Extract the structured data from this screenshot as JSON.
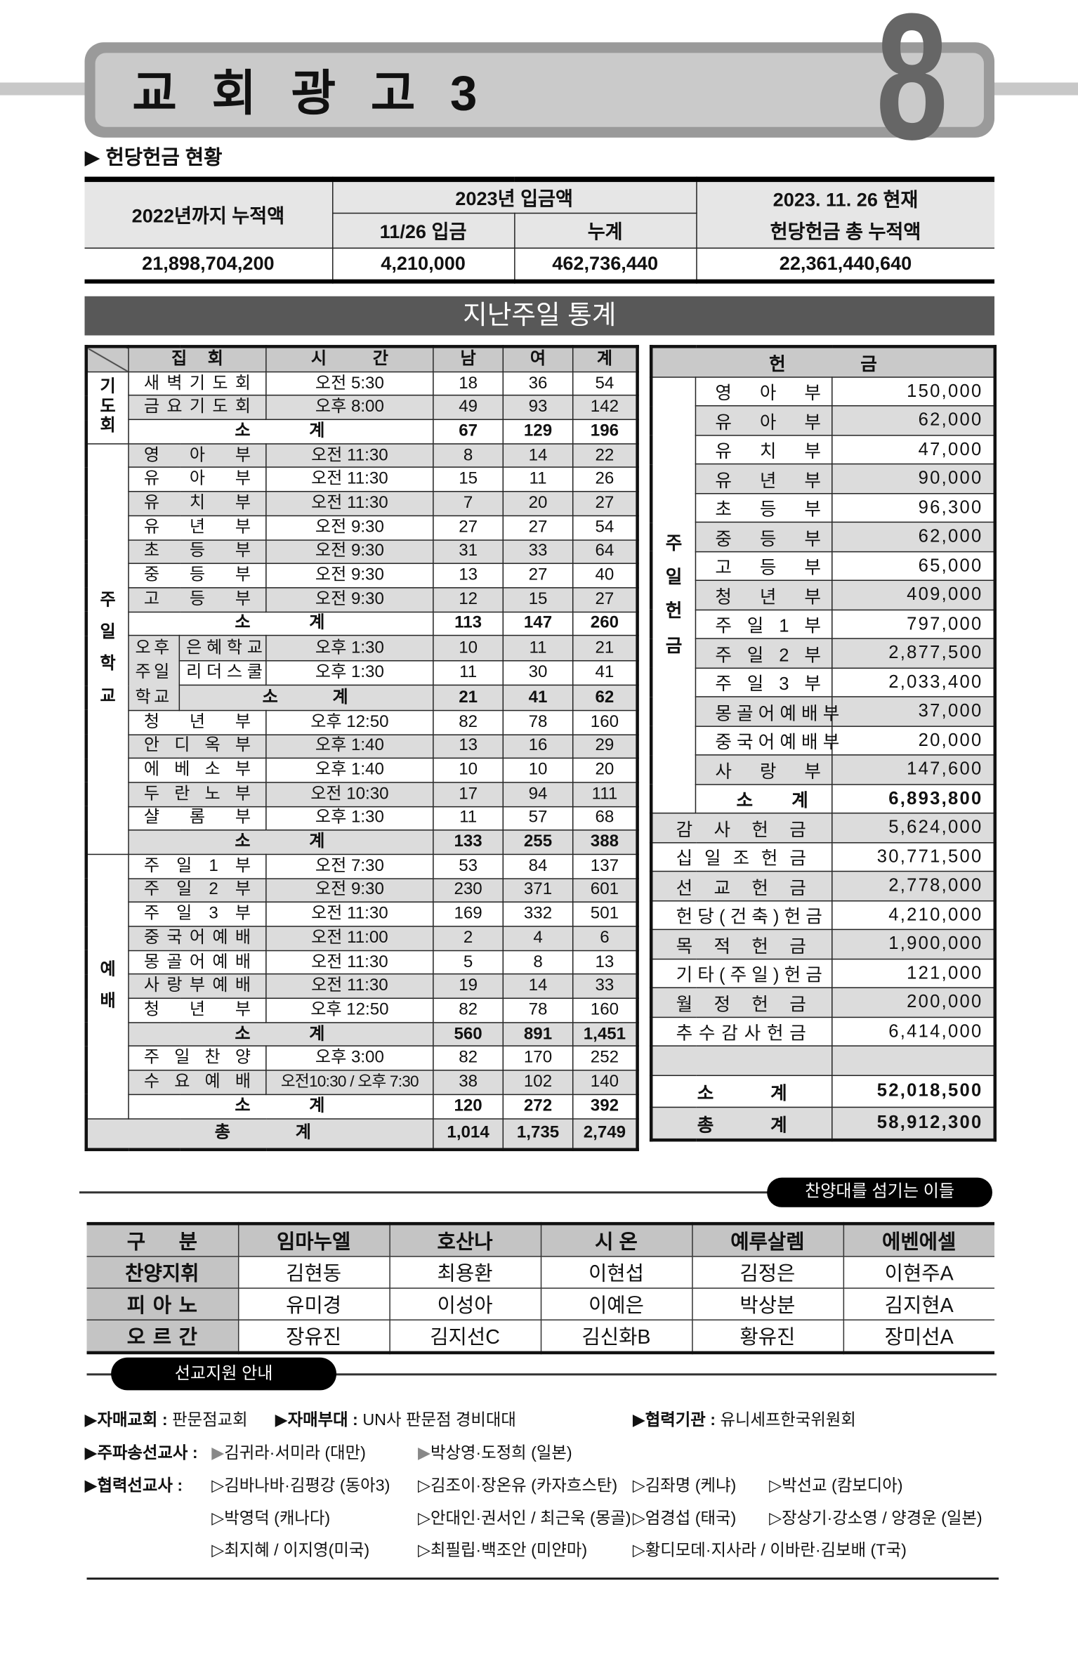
{
  "header": {
    "title": "교 회 광 고 3",
    "page_number": "8",
    "section_label": "▶ 헌당헌금 현황"
  },
  "building_fund": {
    "col_until_2022": "2022년까지 누적액",
    "col_2023": "2023년 입금액",
    "col_1126": "11/26 입금",
    "col_cumulative": "누계",
    "col_total_line1": "2023. 11. 26 현재",
    "col_total_line2": "헌당헌금 총 누적액",
    "values": [
      "21,898,704,200",
      "4,210,000",
      "462,736,440",
      "22,361,440,640"
    ]
  },
  "stats_title": "지난주일 통계",
  "attendance": {
    "headers": [
      "집 회",
      "시 간",
      "남",
      "여",
      "계"
    ],
    "groups": [
      {
        "label": "기도회",
        "items": [
          {
            "name": "새 벽 기 도 회",
            "time": "오전 5:30",
            "m": "18",
            "f": "36",
            "t": "54"
          },
          {
            "name": "금 요 기 도 회",
            "time": "오후 8:00",
            "m": "49",
            "f": "93",
            "t": "142"
          },
          {
            "subtotal": true,
            "label": "소 계",
            "m": "67",
            "f": "129",
            "t": "196"
          }
        ]
      },
      {
        "label": "주일학교",
        "items": [
          {
            "name": "영 아 부",
            "time": "오전 11:30",
            "m": "8",
            "f": "14",
            "t": "22"
          },
          {
            "name": "유 아 부",
            "time": "오전 11:30",
            "m": "15",
            "f": "11",
            "t": "26"
          },
          {
            "name": "유 치 부",
            "time": "오전 11:30",
            "m": "7",
            "f": "20",
            "t": "27"
          },
          {
            "name": "유 년 부",
            "time": "오전 9:30",
            "m": "27",
            "f": "27",
            "t": "54"
          },
          {
            "name": "초 등 부",
            "time": "오전 9:30",
            "m": "31",
            "f": "33",
            "t": "64"
          },
          {
            "name": "중 등 부",
            "time": "오전 9:30",
            "m": "13",
            "f": "27",
            "t": "40"
          },
          {
            "name": "고 등 부",
            "time": "오전 9:30",
            "m": "12",
            "f": "15",
            "t": "27"
          },
          {
            "subtotal": true,
            "label": "소 계",
            "m": "113",
            "f": "147",
            "t": "260"
          },
          {
            "subgroup": "오후주일학교",
            "rows": [
              {
                "name": "은 혜 학 교",
                "time": "오후 1:30",
                "m": "10",
                "f": "11",
                "t": "21"
              },
              {
                "name": "리 더 스 쿨",
                "time": "오후 1:30",
                "m": "11",
                "f": "30",
                "t": "41"
              }
            ],
            "subtotal": {
              "label": "소 계",
              "m": "21",
              "f": "41",
              "t": "62"
            }
          },
          {
            "name": "청 년 부",
            "time": "오후 12:50",
            "m": "82",
            "f": "78",
            "t": "160"
          },
          {
            "name": "안 디 옥 부",
            "time": "오후 1:40",
            "m": "13",
            "f": "16",
            "t": "29"
          },
          {
            "name": "에 베 소 부",
            "time": "오후 1:40",
            "m": "10",
            "f": "10",
            "t": "20"
          },
          {
            "name": "두 란 노 부",
            "time": "오전 10:30",
            "m": "17",
            "f": "94",
            "t": "111"
          },
          {
            "name": "샬 롬 부",
            "time": "오후 1:30",
            "m": "11",
            "f": "57",
            "t": "68"
          },
          {
            "subtotal": true,
            "label": "소 계",
            "m": "133",
            "f": "255",
            "t": "388"
          }
        ]
      },
      {
        "label": "예배",
        "items": [
          {
            "name": "주 일 1 부",
            "time": "오전 7:30",
            "m": "53",
            "f": "84",
            "t": "137"
          },
          {
            "name": "주 일 2 부",
            "time": "오전 9:30",
            "m": "230",
            "f": "371",
            "t": "601"
          },
          {
            "name": "주 일 3 부",
            "time": "오전 11:30",
            "m": "169",
            "f": "332",
            "t": "501"
          },
          {
            "name": "중 국 어 예 배",
            "time": "오전 11:00",
            "m": "2",
            "f": "4",
            "t": "6"
          },
          {
            "name": "몽 골 어 예 배",
            "time": "오전 11:30",
            "m": "5",
            "f": "8",
            "t": "13"
          },
          {
            "name": "사 랑 부 예 배",
            "time": "오전 11:30",
            "m": "19",
            "f": "14",
            "t": "33"
          },
          {
            "name": "청 년 부",
            "time": "오후 12:50",
            "m": "82",
            "f": "78",
            "t": "160"
          },
          {
            "subtotal": true,
            "label": "소 계",
            "m": "560",
            "f": "891",
            "t": "1,451"
          },
          {
            "name": "주 일 찬 양",
            "time": "오후 3:00",
            "m": "82",
            "f": "170",
            "t": "252"
          },
          {
            "name": "수 요 예 배",
            "time": "오전10:30 / 오후 7:30",
            "m": "38",
            "f": "102",
            "t": "140"
          },
          {
            "subtotal": true,
            "label": "소 계",
            "m": "120",
            "f": "272",
            "t": "392"
          }
        ]
      }
    ],
    "total": {
      "label": "총 계",
      "m": "1,014",
      "f": "1,735",
      "t": "2,749"
    }
  },
  "offering": {
    "header": "헌 금",
    "sunday_label": "주일헌금",
    "sunday_rows": [
      {
        "name": "영 아 부",
        "amount": "150,000"
      },
      {
        "name": "유 아 부",
        "amount": "62,000"
      },
      {
        "name": "유 치 부",
        "amount": "47,000"
      },
      {
        "name": "유 년 부",
        "amount": "90,000"
      },
      {
        "name": "초 등 부",
        "amount": "96,300"
      },
      {
        "name": "중 등 부",
        "amount": "62,000"
      },
      {
        "name": "고 등 부",
        "amount": "65,000"
      },
      {
        "name": "청 년 부",
        "amount": "409,000"
      },
      {
        "name": "주 일 1 부",
        "amount": "797,000"
      },
      {
        "name": "주 일 2 부",
        "amount": "2,877,500"
      },
      {
        "name": "주 일 3 부",
        "amount": "2,033,400"
      },
      {
        "name": "몽 골 어 예 배 부",
        "amount": "37,000"
      },
      {
        "name": "중 국 어 예 배 부",
        "amount": "20,000"
      },
      {
        "name": "사 랑 부",
        "amount": "147,600"
      }
    ],
    "sunday_subtotal": {
      "label": "소 계",
      "amount": "6,893,800"
    },
    "other_rows": [
      {
        "name": "감 사 헌 금",
        "amount": "5,624,000"
      },
      {
        "name": "십 일 조 헌 금",
        "amount": "30,771,500"
      },
      {
        "name": "선 교 헌 금",
        "amount": "2,778,000"
      },
      {
        "name": "헌 당 ( 건 축 ) 헌 금",
        "amount": "4,210,000"
      },
      {
        "name": "목 적 헌 금",
        "amount": "1,900,000"
      },
      {
        "name": "기 타 ( 주 일 ) 헌 금",
        "amount": "121,000"
      },
      {
        "name": "월 정 헌 금",
        "amount": "200,000"
      },
      {
        "name": "추 수 감 사 헌 금",
        "amount": "6,414,000"
      },
      {
        "name": "",
        "amount": ""
      }
    ],
    "subtotal": {
      "label": "소 계",
      "amount": "52,018,500"
    },
    "total": {
      "label": "총 계",
      "amount": "58,912,300"
    }
  },
  "choir": {
    "title": "찬양대를 섬기는 이들",
    "headers": [
      "구 분",
      "임마누엘",
      "호산나",
      "시 온",
      "예루살렘",
      "에벤에셀"
    ],
    "rows": [
      [
        "찬양지휘",
        "김현동",
        "최용환",
        "이현섭",
        "김정은",
        "이현주A"
      ],
      [
        "피 아 노",
        "유미경",
        "이성아",
        "이예은",
        "박상분",
        "김지현A"
      ],
      [
        "오 르 간",
        "장유진",
        "김지선C",
        "김신화B",
        "황유진",
        "장미선A"
      ]
    ]
  },
  "mission": {
    "title": "선교지원 안내",
    "sister_church": {
      "label": "자매교회 :",
      "value": "판문점교회"
    },
    "sister_unit": {
      "label": "자매부대 :",
      "value": "UN사 판문점 경비대대"
    },
    "partner_org": {
      "label": "협력기관 :",
      "value": "유니세프한국위원회"
    },
    "sent_label": "주파송선교사 :",
    "sent": [
      "김귀라·서미라 (대만)",
      "박상영·도정희 (일본)"
    ],
    "partner_label": "협력선교사 :",
    "partners": [
      [
        "김바나바·김평강 (동아3)",
        "김조이·장온유 (카자흐스탄)",
        "김좌명 (케냐)",
        "박선교 (캄보디아)"
      ],
      [
        "박영덕 (캐나다)",
        "안대인·권서인 / 최근욱 (몽골)",
        "엄경섭 (태국)",
        "장상기·강소영 / 양경운 (일본)"
      ],
      [
        "최지혜 / 이지영(미국)",
        "최필립·백조안 (미얀마)",
        "황디모데·지사라 / 이바란·김보배 (T국)"
      ]
    ]
  }
}
